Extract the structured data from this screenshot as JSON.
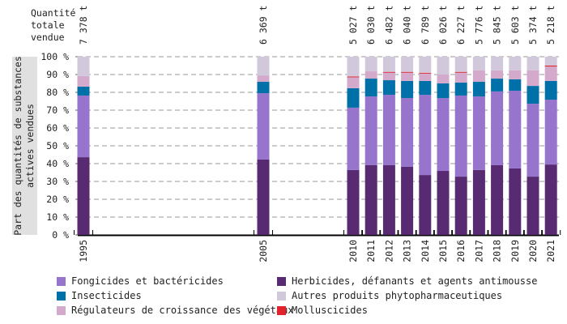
{
  "chart_data": {
    "type": "bar",
    "stacked": true,
    "ylabel": "Part des quantités de substances actives vendues",
    "totals_label": "Quantité totale vendue",
    "ylim": [
      0,
      100
    ],
    "yticks": [
      "0 %",
      "10 %",
      "20 %",
      "30 %",
      "40 %",
      "50 %",
      "60 %",
      "70 %",
      "80 %",
      "90 %",
      "100 %"
    ],
    "grid": true,
    "legend_position": "bottom",
    "categories": [
      "1995",
      "2005",
      "2010",
      "2011",
      "2012",
      "2013",
      "2014",
      "2015",
      "2016",
      "2017",
      "2018",
      "2019",
      "2020",
      "2021"
    ],
    "totals": [
      "7 378 t",
      "6 369 t",
      "5 027 t",
      "6 030 t",
      "6 482 t",
      "6 040 t",
      "6 789 t",
      "6 026 t",
      "6 227 t",
      "5 776 t",
      "5 845 t",
      "5 603 t",
      "5 374 t",
      "5 218 t"
    ],
    "series": [
      {
        "name": "Herbicides, défanants et agents antimousse",
        "color": "#582a72",
        "values": [
          43.6,
          42.3,
          36.4,
          39.1,
          39.1,
          38.2,
          33.6,
          35.9,
          32.7,
          36.4,
          39.1,
          37.3,
          32.7,
          39.5
        ]
      },
      {
        "name": "Fongicides et bactéricides",
        "color": "#9775cc",
        "values": [
          34.6,
          37.2,
          35.0,
          38.6,
          39.5,
          38.6,
          45.0,
          40.9,
          45.5,
          41.3,
          41.4,
          43.6,
          40.9,
          36.4
        ]
      },
      {
        "name": "Insecticides",
        "color": "#0070a8",
        "values": [
          5.0,
          6.4,
          10.9,
          10.0,
          8.2,
          9.6,
          7.8,
          8.2,
          7.3,
          8.2,
          7.2,
          6.4,
          10.0,
          10.5
        ]
      },
      {
        "name": "Régulateurs de croissance des végétaux",
        "color": "#d3aacb",
        "values": [
          6.0,
          3.6,
          6.3,
          4.1,
          4.4,
          4.8,
          4.3,
          5.0,
          5.7,
          6.4,
          4.6,
          5.0,
          8.7,
          8.1
        ]
      },
      {
        "name": "Molluscicides",
        "color": "#e3232b",
        "values": [
          0,
          0,
          0.3,
          0,
          0.3,
          0.3,
          0.3,
          0,
          0.3,
          0,
          0,
          0,
          0,
          0.5
        ]
      },
      {
        "name": "Autres produits phytopharmaceutiques",
        "color": "#d1c9db",
        "values": [
          10.8,
          10.5,
          11.1,
          8.2,
          8.5,
          8.5,
          9.0,
          10.0,
          8.5,
          7.7,
          7.7,
          7.7,
          7.7,
          5.0
        ]
      }
    ],
    "legend_order": [
      1,
      0,
      2,
      5,
      3,
      4
    ]
  }
}
